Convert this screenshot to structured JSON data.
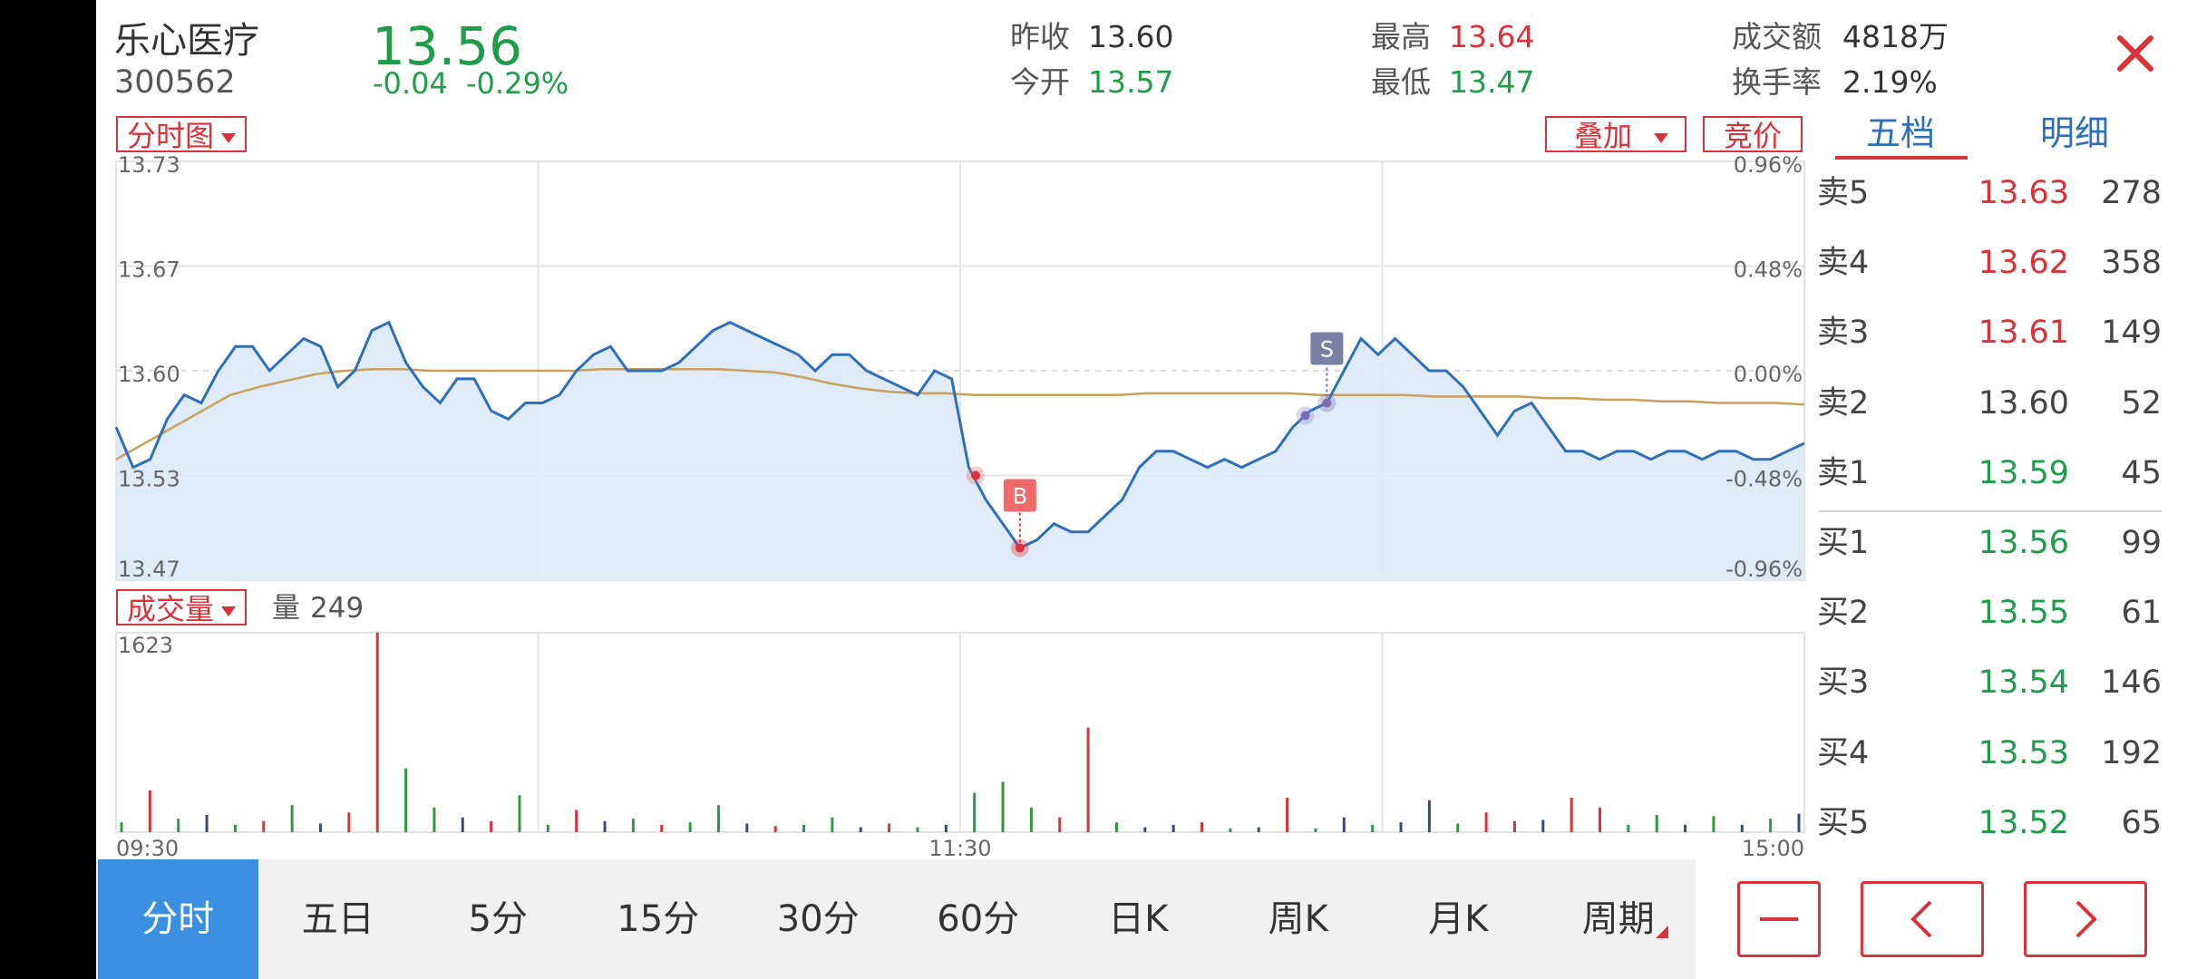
{
  "stock": {
    "name": "乐心医疗",
    "code": "300562",
    "price": "13.56",
    "change": "-0.04",
    "change_pct": "-0.29%"
  },
  "stats": {
    "prev_close_label": "昨收",
    "prev_close": "13.60",
    "open_label": "今开",
    "open": "13.57",
    "high_label": "最高",
    "high": "13.64",
    "low_label": "最低",
    "low": "13.47",
    "turnover_label": "成交额",
    "turnover": "4818万",
    "turnover_rate_label": "换手率",
    "turnover_rate": "2.19%"
  },
  "chart_controls": {
    "mode": "分时图",
    "overlay": "叠加",
    "auction": "竞价",
    "volume_mode": "成交量",
    "volume_label": "量",
    "volume_value": "249"
  },
  "side_tabs": [
    "五档",
    "明细"
  ],
  "order_book": {
    "asks": [
      {
        "label": "卖5",
        "price": "13.63",
        "vol": "278",
        "color": "red"
      },
      {
        "label": "卖4",
        "price": "13.62",
        "vol": "358",
        "color": "red"
      },
      {
        "label": "卖3",
        "price": "13.61",
        "vol": "149",
        "color": "red"
      },
      {
        "label": "卖2",
        "price": "13.60",
        "vol": "52",
        "color": "gray"
      },
      {
        "label": "卖1",
        "price": "13.59",
        "vol": "45",
        "color": "green"
      }
    ],
    "bids": [
      {
        "label": "买1",
        "price": "13.56",
        "vol": "99",
        "color": "green"
      },
      {
        "label": "买2",
        "price": "13.55",
        "vol": "61",
        "color": "green"
      },
      {
        "label": "买3",
        "price": "13.54",
        "vol": "146",
        "color": "green"
      },
      {
        "label": "买4",
        "price": "13.53",
        "vol": "192",
        "color": "green"
      },
      {
        "label": "买5",
        "price": "13.52",
        "vol": "65",
        "color": "green"
      }
    ]
  },
  "period_tabs": [
    "分时",
    "五日",
    "5分",
    "15分",
    "30分",
    "60分",
    "日K",
    "周K",
    "月K",
    "周期"
  ],
  "active_period": 0,
  "colors": {
    "up": "#d9333a",
    "down": "#1f9d4a",
    "price_line": "#2f6fba",
    "avg_line": "#c9a15a",
    "area": "#dbe9f8",
    "active_tab": "#3b8ee0"
  },
  "chart_data": {
    "type": "line",
    "price_axis_left": [
      "13.73",
      "13.67",
      "13.60",
      "13.53",
      "13.47"
    ],
    "pct_axis_right": [
      "0.96%",
      "0.48%",
      "0.00%",
      "-0.48%",
      "-0.96%"
    ],
    "ylim": [
      13.47,
      13.73
    ],
    "time_labels": [
      "09:30",
      "11:30",
      "15:00"
    ],
    "price_series": [
      13.565,
      13.54,
      13.545,
      13.57,
      13.585,
      13.58,
      13.6,
      13.615,
      13.615,
      13.6,
      13.61,
      13.62,
      13.615,
      13.59,
      13.6,
      13.625,
      13.63,
      13.605,
      13.59,
      13.58,
      13.595,
      13.595,
      13.575,
      13.57,
      13.58,
      13.58,
      13.585,
      13.6,
      13.61,
      13.615,
      13.6,
      13.6,
      13.6,
      13.605,
      13.615,
      13.625,
      13.63,
      13.625,
      13.62,
      13.615,
      13.61,
      13.6,
      13.61,
      13.61,
      13.6,
      13.595,
      13.59,
      13.585,
      13.6,
      13.595,
      13.54,
      13.52,
      13.505,
      13.49,
      13.495,
      13.505,
      13.5,
      13.5,
      13.51,
      13.52,
      13.54,
      13.55,
      13.55,
      13.545,
      13.54,
      13.545,
      13.54,
      13.545,
      13.55,
      13.565,
      13.575,
      13.58,
      13.6,
      13.62,
      13.61,
      13.62,
      13.61,
      13.6,
      13.6,
      13.59,
      13.575,
      13.56,
      13.575,
      13.58,
      13.565,
      13.55,
      13.55,
      13.545,
      13.55,
      13.55,
      13.545,
      13.55,
      13.55,
      13.545,
      13.55,
      13.55,
      13.545,
      13.545,
      13.55,
      13.555
    ],
    "avg_series": [
      13.545,
      13.555,
      13.565,
      13.575,
      13.585,
      13.59,
      13.594,
      13.598,
      13.6,
      13.601,
      13.601,
      13.6,
      13.6,
      13.6,
      13.6,
      13.6,
      13.6,
      13.601,
      13.601,
      13.601,
      13.601,
      13.601,
      13.6,
      13.599,
      13.596,
      13.592,
      13.589,
      13.587,
      13.586,
      13.586,
      13.585,
      13.585,
      13.585,
      13.585,
      13.585,
      13.585,
      13.586,
      13.586,
      13.586,
      13.586,
      13.586,
      13.586,
      13.585,
      13.585,
      13.585,
      13.585,
      13.584,
      13.584,
      13.584,
      13.584,
      13.583,
      13.583,
      13.582,
      13.582,
      13.581,
      13.581,
      13.58,
      13.58,
      13.58,
      13.579
    ],
    "volume_ymax": "1623",
    "volumes": [
      {
        "v": 80,
        "c": "green"
      },
      {
        "v": 340,
        "c": "red"
      },
      {
        "v": 110,
        "c": "green"
      },
      {
        "v": 140,
        "c": "blue"
      },
      {
        "v": 60,
        "c": "green"
      },
      {
        "v": 90,
        "c": "red"
      },
      {
        "v": 220,
        "c": "green"
      },
      {
        "v": 70,
        "c": "blue"
      },
      {
        "v": 160,
        "c": "red"
      },
      {
        "v": 1623,
        "c": "red"
      },
      {
        "v": 520,
        "c": "green"
      },
      {
        "v": 200,
        "c": "green"
      },
      {
        "v": 120,
        "c": "blue"
      },
      {
        "v": 90,
        "c": "red"
      },
      {
        "v": 300,
        "c": "green"
      },
      {
        "v": 60,
        "c": "green"
      },
      {
        "v": 180,
        "c": "red"
      },
      {
        "v": 90,
        "c": "blue"
      },
      {
        "v": 110,
        "c": "green"
      },
      {
        "v": 60,
        "c": "red"
      },
      {
        "v": 80,
        "c": "green"
      },
      {
        "v": 220,
        "c": "green"
      },
      {
        "v": 70,
        "c": "blue"
      },
      {
        "v": 50,
        "c": "red"
      },
      {
        "v": 60,
        "c": "green"
      },
      {
        "v": 120,
        "c": "green"
      },
      {
        "v": 40,
        "c": "blue"
      },
      {
        "v": 70,
        "c": "red"
      },
      {
        "v": 40,
        "c": "green"
      },
      {
        "v": 60,
        "c": "blue"
      },
      {
        "v": 320,
        "c": "green"
      },
      {
        "v": 410,
        "c": "green"
      },
      {
        "v": 200,
        "c": "green"
      },
      {
        "v": 120,
        "c": "red"
      },
      {
        "v": 850,
        "c": "red"
      },
      {
        "v": 80,
        "c": "green"
      },
      {
        "v": 40,
        "c": "blue"
      },
      {
        "v": 60,
        "c": "blue"
      },
      {
        "v": 80,
        "c": "red"
      },
      {
        "v": 30,
        "c": "green"
      },
      {
        "v": 40,
        "c": "blue"
      },
      {
        "v": 280,
        "c": "red"
      },
      {
        "v": 30,
        "c": "green"
      },
      {
        "v": 120,
        "c": "blue"
      },
      {
        "v": 60,
        "c": "green"
      },
      {
        "v": 80,
        "c": "blue"
      },
      {
        "v": 260,
        "c": "blue"
      },
      {
        "v": 70,
        "c": "green"
      },
      {
        "v": 160,
        "c": "red"
      },
      {
        "v": 90,
        "c": "red"
      },
      {
        "v": 100,
        "c": "blue"
      },
      {
        "v": 280,
        "c": "red"
      },
      {
        "v": 200,
        "c": "red"
      },
      {
        "v": 60,
        "c": "green"
      },
      {
        "v": 140,
        "c": "green"
      },
      {
        "v": 60,
        "c": "blue"
      },
      {
        "v": 130,
        "c": "green"
      },
      {
        "v": 60,
        "c": "blue"
      },
      {
        "v": 110,
        "c": "green"
      },
      {
        "v": 150,
        "c": "blue"
      }
    ]
  }
}
